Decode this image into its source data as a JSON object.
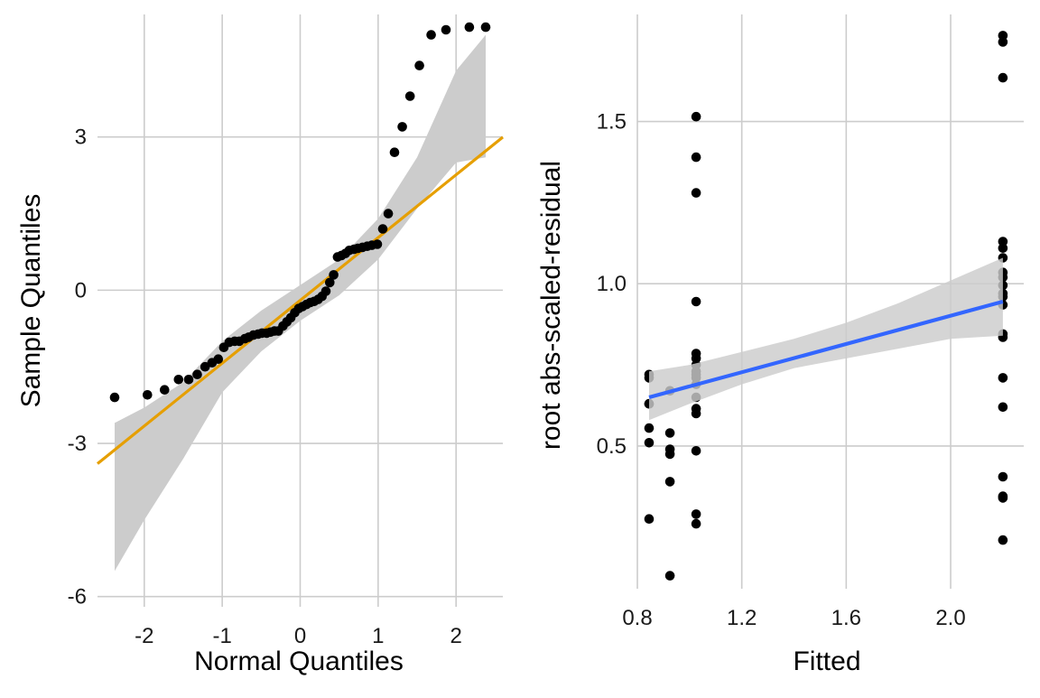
{
  "colors": {
    "points": "#000000",
    "ref_line": "#E69F00",
    "smooth_line": "#3366FF",
    "band": "#cccccc",
    "grid": "#cccccc",
    "background": "#ffffff"
  },
  "chart_data": [
    {
      "type": "scatter",
      "subtype": "qq-plot",
      "title": "",
      "xlabel": "Normal Quantiles",
      "ylabel": "Sample Quantiles",
      "xlim": [
        -2.6,
        2.6
      ],
      "ylim": [
        -6.2,
        5.4
      ],
      "x_ticks": [
        -2,
        -1,
        0,
        1,
        2
      ],
      "x_tick_labels": [
        "-2",
        "-1",
        "0",
        "1",
        "2"
      ],
      "y_ticks": [
        -6,
        -3,
        0,
        3
      ],
      "y_tick_labels": [
        "-6",
        "-3",
        "0",
        "3"
      ],
      "grid": true,
      "reference_line": {
        "slope": 1.23,
        "intercept": -0.2
      },
      "confidence_band": {
        "x": [
          -2.38,
          -2.0,
          -1.5,
          -1.0,
          -0.5,
          0.0,
          0.5,
          1.0,
          1.5,
          2.0,
          2.38
        ],
        "lower": [
          -5.5,
          -4.5,
          -3.3,
          -2.0,
          -1.2,
          -0.6,
          -0.1,
          0.6,
          1.6,
          2.5,
          2.6
        ],
        "upper": [
          -2.6,
          -2.3,
          -1.8,
          -1.0,
          -0.4,
          0.1,
          0.6,
          1.4,
          2.6,
          4.3,
          5.0
        ]
      },
      "points": {
        "x": [
          -2.38,
          -1.96,
          -1.74,
          -1.56,
          -1.43,
          -1.32,
          -1.22,
          -1.13,
          -1.05,
          -0.98,
          -0.91,
          -0.84,
          -0.78,
          -0.71,
          -0.66,
          -0.6,
          -0.54,
          -0.49,
          -0.43,
          -0.38,
          -0.33,
          -0.28,
          -0.22,
          -0.17,
          -0.12,
          -0.07,
          -0.02,
          0.03,
          0.08,
          0.13,
          0.18,
          0.23,
          0.28,
          0.33,
          0.38,
          0.43,
          0.48,
          0.53,
          0.58,
          0.63,
          0.69,
          0.74,
          0.8,
          0.86,
          0.92,
          0.99,
          1.06,
          1.13,
          1.21,
          1.31,
          1.41,
          1.53,
          1.68,
          1.87,
          2.17,
          2.38
        ],
        "y": [
          -2.1,
          -2.05,
          -1.95,
          -1.75,
          -1.75,
          -1.65,
          -1.5,
          -1.42,
          -1.35,
          -1.12,
          -1.02,
          -1.0,
          -1.0,
          -0.95,
          -0.92,
          -0.88,
          -0.86,
          -0.84,
          -0.84,
          -0.82,
          -0.8,
          -0.8,
          -0.7,
          -0.62,
          -0.54,
          -0.44,
          -0.36,
          -0.32,
          -0.28,
          -0.24,
          -0.22,
          -0.18,
          -0.12,
          -0.02,
          0.15,
          0.3,
          0.65,
          0.68,
          0.72,
          0.78,
          0.8,
          0.82,
          0.84,
          0.86,
          0.88,
          0.9,
          1.2,
          1.5,
          2.7,
          3.2,
          3.8,
          4.4,
          5.0,
          5.1,
          5.15,
          5.15
        ]
      }
    },
    {
      "type": "scatter",
      "subtype": "scale-location",
      "title": "",
      "xlabel": "Fitted",
      "ylabel": "root abs-scaled-residual",
      "xlim": [
        0.8,
        2.28
      ],
      "ylim": [
        0.06,
        1.83
      ],
      "x_ticks": [
        0.8,
        1.2,
        1.6,
        2.0
      ],
      "x_tick_labels": [
        "0.8",
        "1.2",
        "1.6",
        "2.0"
      ],
      "y_ticks": [
        0.5,
        1.0,
        1.5
      ],
      "y_tick_labels": [
        "0.5",
        "1.0",
        "1.5"
      ],
      "grid": true,
      "smooth_line": {
        "x": [
          0.845,
          2.2
        ],
        "y": [
          0.65,
          0.945
        ]
      },
      "confidence_band": {
        "x": [
          0.845,
          1.0,
          1.2,
          1.4,
          1.6,
          1.8,
          2.0,
          2.2
        ],
        "lower": [
          0.58,
          0.63,
          0.69,
          0.74,
          0.77,
          0.8,
          0.83,
          0.84
        ],
        "upper": [
          0.73,
          0.75,
          0.79,
          0.83,
          0.88,
          0.94,
          1.01,
          1.08
        ]
      },
      "points": {
        "x": [
          0.845,
          0.845,
          0.845,
          0.845,
          0.845,
          0.845,
          0.845,
          0.925,
          0.925,
          0.925,
          0.925,
          0.925,
          0.925,
          1.025,
          1.025,
          1.025,
          1.025,
          1.025,
          1.025,
          1.025,
          1.025,
          1.025,
          1.025,
          1.025,
          1.025,
          1.025,
          1.025,
          1.025,
          1.025,
          1.025,
          2.2,
          2.2,
          2.2,
          2.2,
          2.2,
          2.2,
          2.2,
          2.2,
          2.2,
          2.2,
          2.2,
          2.2,
          2.2,
          2.2,
          2.2,
          2.2,
          2.2,
          2.2,
          2.2,
          2.2
        ],
        "y": [
          0.72,
          0.71,
          0.63,
          0.555,
          0.51,
          0.275,
          0.63,
          0.67,
          0.54,
          0.49,
          0.475,
          0.39,
          0.1,
          1.515,
          1.39,
          1.28,
          0.945,
          0.785,
          0.77,
          0.75,
          0.73,
          0.71,
          0.69,
          0.65,
          0.615,
          0.6,
          0.485,
          0.29,
          0.26,
          0.72,
          1.765,
          1.745,
          1.635,
          1.13,
          1.11,
          1.08,
          1.035,
          1.02,
          0.995,
          0.96,
          0.935,
          0.845,
          0.835,
          0.71,
          0.62,
          0.405,
          0.345,
          0.34,
          0.21,
          0.97
        ]
      }
    }
  ]
}
